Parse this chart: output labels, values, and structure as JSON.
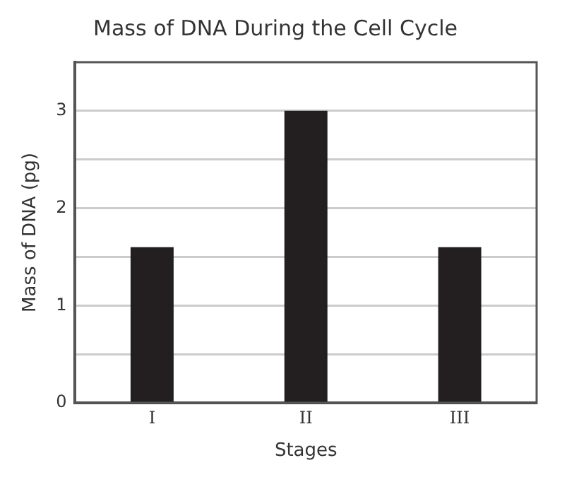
{
  "chart_data": {
    "type": "bar",
    "title": "Mass of DNA During the Cell Cycle",
    "xlabel": "Stages",
    "ylabel": "Mass of DNA (pg)",
    "categories": [
      "I",
      "II",
      "III"
    ],
    "values": [
      1.6,
      3,
      1.6
    ],
    "color": "#231f20",
    "ylim": [
      0,
      3.5
    ],
    "yticks": [
      0,
      {
        "value": 0.5,
        "label": null
      },
      1,
      {
        "value": 1.5,
        "label": null
      },
      2,
      {
        "value": 2.5,
        "label": null
      },
      3
    ],
    "grid": "y",
    "legend": false
  }
}
